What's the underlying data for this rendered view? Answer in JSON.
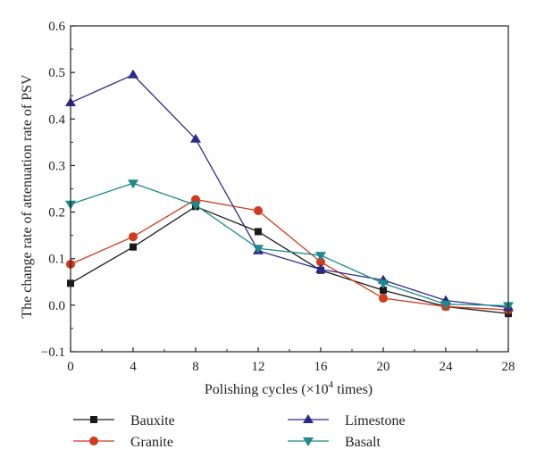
{
  "chart_data": {
    "type": "line",
    "title": "",
    "xlabel_prefix": "Polishing cycles (×10",
    "xlabel_sup": "4",
    "xlabel_suffix": " times)",
    "ylabel": "The change rate of attenuation rate of PSV",
    "x": [
      0,
      4,
      8,
      12,
      16,
      20,
      24,
      28
    ],
    "xlim": [
      0,
      28
    ],
    "ylim": [
      -0.1,
      0.6
    ],
    "xticks": [
      "0",
      "4",
      "8",
      "12",
      "16",
      "20",
      "24",
      "28"
    ],
    "yticks": [
      "−0.1",
      "0.0",
      "0.1",
      "0.2",
      "0.3",
      "0.4",
      "0.5",
      "0.6"
    ],
    "grid": false,
    "legend_position": "bottom",
    "series": [
      {
        "name": "Bauxite",
        "color": "#1a1a1a",
        "marker": "square",
        "values": [
          0.047,
          0.125,
          0.212,
          0.158,
          0.075,
          0.032,
          -0.003,
          -0.018
        ]
      },
      {
        "name": "Granite",
        "color": "#d03a1e",
        "marker": "circle",
        "values": [
          0.088,
          0.147,
          0.227,
          0.203,
          0.093,
          0.015,
          -0.003,
          -0.01
        ]
      },
      {
        "name": "Limestone",
        "color": "#2b2a8c",
        "marker": "triangle-up",
        "values": [
          0.435,
          0.495,
          0.357,
          0.117,
          0.077,
          0.054,
          0.01,
          -0.005
        ]
      },
      {
        "name": "Basalt",
        "color": "#1e8a8a",
        "marker": "triangle-down",
        "values": [
          0.217,
          0.262,
          0.215,
          0.122,
          0.107,
          0.047,
          0.002,
          -0.001
        ]
      }
    ]
  }
}
